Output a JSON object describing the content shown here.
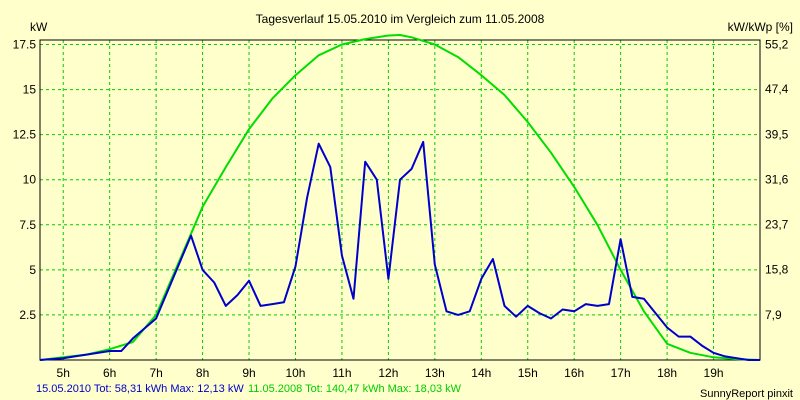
{
  "chart_data": {
    "type": "line",
    "title": "Tagesverlauf 15.05.2010 im Vergleich zum 11.05.2008",
    "ylabel_left": "kW",
    "ylabel_right": "kW/kWp [%]",
    "xlim": [
      4.5,
      20.0
    ],
    "ylim_left": [
      0,
      17.75
    ],
    "ylim_right": [
      0,
      56.0
    ],
    "x_ticks": [
      {
        "x": 5,
        "label": "5h"
      },
      {
        "x": 6,
        "label": "6h"
      },
      {
        "x": 7,
        "label": "7h"
      },
      {
        "x": 8,
        "label": "8h"
      },
      {
        "x": 9,
        "label": "9h"
      },
      {
        "x": 10,
        "label": "10h"
      },
      {
        "x": 11,
        "label": "11h"
      },
      {
        "x": 12,
        "label": "12h"
      },
      {
        "x": 13,
        "label": "13h"
      },
      {
        "x": 14,
        "label": "14h"
      },
      {
        "x": 15,
        "label": "15h"
      },
      {
        "x": 16,
        "label": "16h"
      },
      {
        "x": 17,
        "label": "17h"
      },
      {
        "x": 18,
        "label": "18h"
      },
      {
        "x": 19,
        "label": "19h"
      }
    ],
    "y_ticks_left": [
      {
        "v": 2.5,
        "label": "2.5"
      },
      {
        "v": 5,
        "label": "5"
      },
      {
        "v": 7.5,
        "label": "7.5"
      },
      {
        "v": 10,
        "label": "10"
      },
      {
        "v": 12.5,
        "label": "12.5"
      },
      {
        "v": 15,
        "label": "15"
      },
      {
        "v": 17.5,
        "label": "17.5"
      }
    ],
    "y_ticks_right": [
      {
        "v": 7.9,
        "label": "7,9"
      },
      {
        "v": 15.8,
        "label": "15,8"
      },
      {
        "v": 23.7,
        "label": "23,7"
      },
      {
        "v": 31.6,
        "label": "31,6"
      },
      {
        "v": 39.5,
        "label": "39,5"
      },
      {
        "v": 47.4,
        "label": "47,4"
      },
      {
        "v": 55.2,
        "label": "55,2"
      }
    ],
    "grid": true,
    "series": [
      {
        "name": "15.05.2010",
        "color": "#0000cc",
        "x": [
          4.5,
          5.0,
          5.25,
          5.5,
          6.0,
          6.25,
          6.5,
          7.0,
          7.75,
          8.0,
          8.25,
          8.5,
          8.75,
          9.0,
          9.25,
          9.5,
          9.75,
          10.0,
          10.25,
          10.5,
          10.75,
          11.0,
          11.25,
          11.5,
          11.75,
          12.0,
          12.25,
          12.5,
          12.75,
          13.0,
          13.25,
          13.5,
          13.75,
          14.0,
          14.25,
          14.5,
          14.75,
          15.0,
          15.25,
          15.5,
          15.75,
          16.0,
          16.25,
          16.5,
          16.75,
          17.0,
          17.25,
          17.5,
          17.75,
          18.0,
          18.25,
          18.5,
          18.75,
          19.0,
          19.25,
          19.5,
          19.75,
          20.0
        ],
        "y": [
          0,
          0.1,
          0.2,
          0.3,
          0.5,
          0.5,
          1.2,
          2.3,
          6.9,
          5.0,
          4.3,
          3.0,
          3.6,
          4.4,
          3.0,
          3.1,
          3.2,
          5.2,
          9.0,
          12.0,
          10.7,
          5.8,
          3.4,
          11.0,
          10.0,
          4.5,
          10.0,
          10.6,
          12.1,
          5.3,
          2.7,
          2.5,
          2.7,
          4.5,
          5.6,
          3.0,
          2.4,
          3.0,
          2.6,
          2.3,
          2.8,
          2.7,
          3.1,
          3.0,
          3.1,
          6.7,
          3.5,
          3.4,
          2.6,
          1.8,
          1.3,
          1.3,
          0.8,
          0.4,
          0.2,
          0.1,
          0,
          0
        ]
      },
      {
        "name": "11.05.2008",
        "color": "#00dd00",
        "x": [
          4.5,
          5.0,
          5.5,
          6.0,
          6.5,
          7.0,
          7.5,
          8.0,
          8.5,
          9.0,
          9.5,
          10.0,
          10.5,
          11.0,
          11.5,
          12.0,
          12.25,
          12.5,
          13.0,
          13.5,
          14.0,
          14.5,
          15.0,
          15.5,
          16.0,
          16.5,
          17.0,
          17.5,
          18.0,
          18.5,
          19.0,
          19.5,
          20.0
        ],
        "y": [
          0,
          0.15,
          0.3,
          0.6,
          1.0,
          2.5,
          5.5,
          8.5,
          10.7,
          12.8,
          14.5,
          15.8,
          16.9,
          17.5,
          17.8,
          18.0,
          18.03,
          17.9,
          17.5,
          16.8,
          15.8,
          14.7,
          13.2,
          11.5,
          9.6,
          7.5,
          5.0,
          2.7,
          0.9,
          0.4,
          0.15,
          0.05,
          0
        ]
      }
    ]
  },
  "footer": {
    "legend_blue": "15.05.2010 Tot: 58,31 kWh Max: 12,13 kW",
    "legend_green": "11.05.2008 Tot: 140,47 kWh Max: 18,03 kW",
    "credit": "SunnyReport pinxit"
  }
}
